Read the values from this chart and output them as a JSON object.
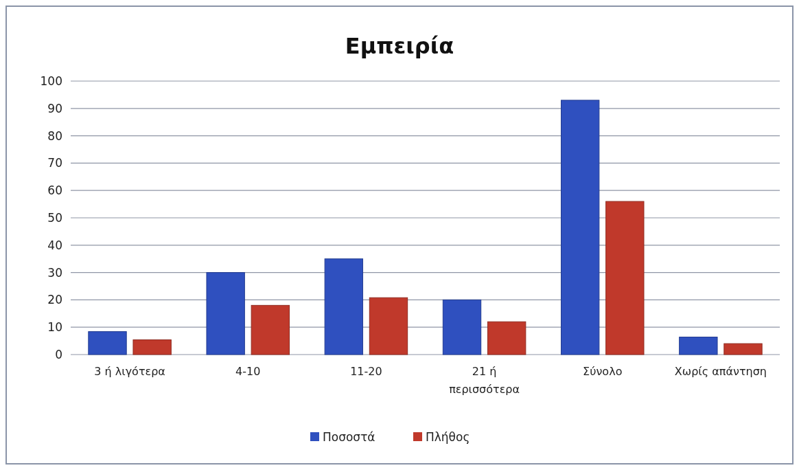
{
  "chart_data": {
    "type": "bar",
    "title": "Εμπειρία",
    "categories": [
      "3 ή λιγότερα",
      "4-10",
      "11-20",
      "21 ή περισσότερα",
      "Σύνολο",
      "Χωρίς απάντηση"
    ],
    "series": [
      {
        "name": "Ποσοστά",
        "color": "#2f50bf",
        "values": [
          8.4,
          30,
          35,
          20,
          93,
          6.4
        ]
      },
      {
        "name": "Πλήθος",
        "color": "#c0392b",
        "values": [
          5.4,
          18,
          20.8,
          12,
          56,
          4
        ]
      }
    ],
    "ylim": [
      0,
      100
    ],
    "yticks": [
      0,
      10,
      20,
      30,
      40,
      50,
      60,
      70,
      80,
      90,
      100
    ],
    "grid": "y",
    "legend": "bottom"
  }
}
